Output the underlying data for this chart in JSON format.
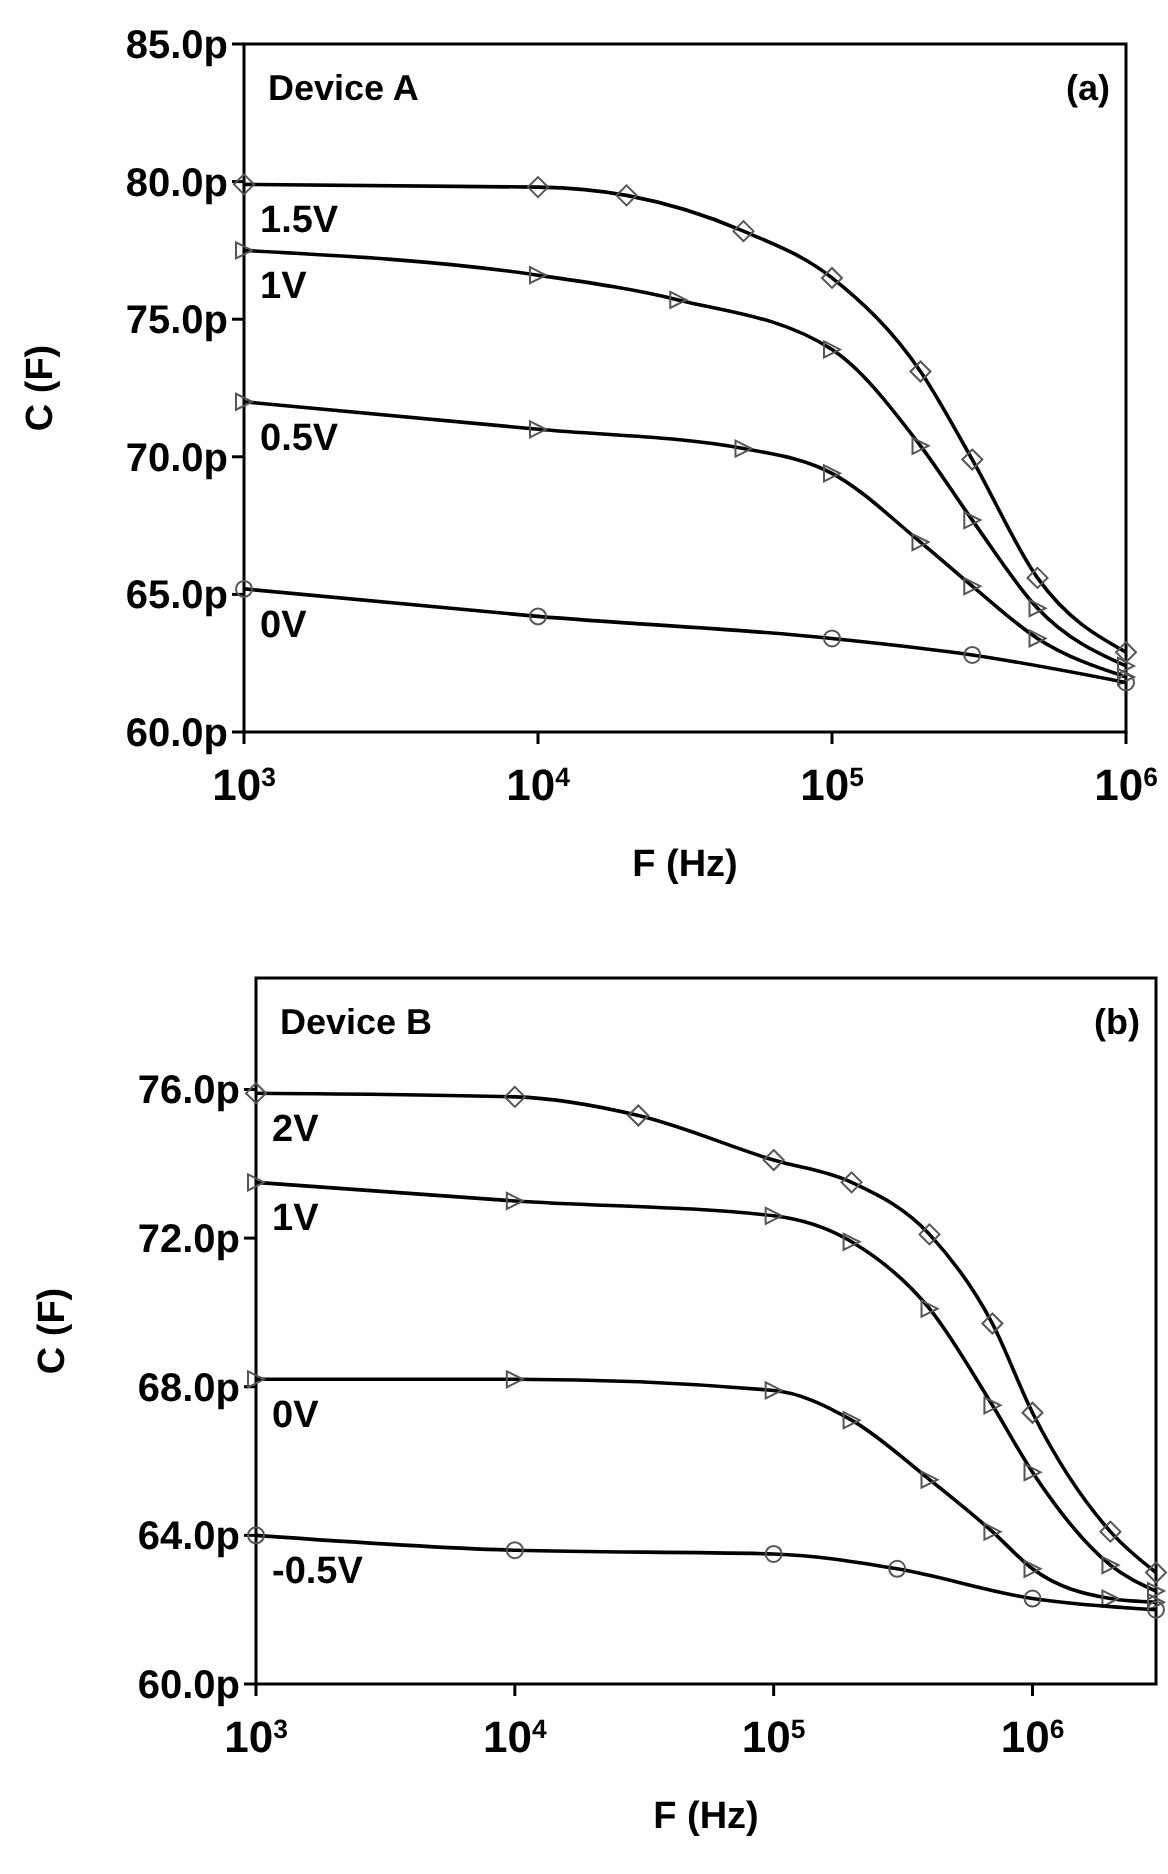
{
  "chart_data": [
    {
      "type": "line",
      "xlabel": "F (Hz)",
      "ylabel": "C (F)",
      "log": "x",
      "grid": false,
      "line_style": "solid",
      "annotations": [
        "Device A",
        "(a)"
      ],
      "xlim": [
        1000,
        1000000
      ],
      "xticks": [
        {
          "value": 1000,
          "label": "10$^{3}$"
        },
        {
          "value": 10000,
          "label": "10$^{4}$"
        },
        {
          "value": 100000,
          "label": "10$^{5}$"
        },
        {
          "value": 1000000,
          "label": "10$^{6}$"
        }
      ],
      "ylim": [
        60,
        85
      ],
      "yticks": [
        {
          "value": 60,
          "label": "60.0p"
        },
        {
          "value": 65,
          "label": "65.0p"
        },
        {
          "value": 70,
          "label": "70.0p"
        },
        {
          "value": 75,
          "label": "75.0p"
        },
        {
          "value": 80,
          "label": "80.0p"
        },
        {
          "value": 85,
          "label": "85.0p"
        }
      ],
      "series": [
        {
          "name": "1.5V",
          "color": "#000000",
          "marker": "diamond",
          "x": [
            1000,
            10000,
            20000,
            50000,
            100000,
            200000,
            300000,
            500000,
            1000000
          ],
          "values": [
            79.9,
            79.8,
            79.5,
            78.2,
            76.5,
            73.1,
            69.9,
            65.6,
            62.9
          ]
        },
        {
          "name": "1V",
          "color": "#000000",
          "marker": "triangle",
          "x": [
            1000,
            10000,
            30000,
            100000,
            200000,
            300000,
            500000,
            1000000
          ],
          "values": [
            77.5,
            76.6,
            75.7,
            73.9,
            70.4,
            67.7,
            64.5,
            62.4
          ]
        },
        {
          "name": "0.5V",
          "color": "#000000",
          "marker": "triangle",
          "x": [
            1000,
            10000,
            50000,
            100000,
            200000,
            300000,
            500000,
            1000000
          ],
          "values": [
            72.0,
            71.0,
            70.3,
            69.4,
            66.9,
            65.3,
            63.4,
            62.0
          ]
        },
        {
          "name": "0V",
          "color": "#000000",
          "marker": "circle",
          "x": [
            1000,
            10000,
            100000,
            300000,
            1000000
          ],
          "values": [
            65.2,
            64.2,
            63.4,
            62.8,
            61.8
          ]
        }
      ]
    },
    {
      "type": "line",
      "xlabel": "F (Hz)",
      "ylabel": "C (F)",
      "log": "x",
      "grid": false,
      "line_style": "solid",
      "annotations": [
        "Device B",
        "(b)"
      ],
      "xlim": [
        1000,
        3000000
      ],
      "xticks": [
        {
          "value": 1000,
          "label": "10$^{3}$"
        },
        {
          "value": 10000,
          "label": "10$^{4}$"
        },
        {
          "value": 100000,
          "label": "10$^{5}$"
        },
        {
          "value": 1000000,
          "label": "10$^{6}$"
        }
      ],
      "ylim": [
        60,
        79
      ],
      "yticks": [
        {
          "value": 60,
          "label": "60.0p"
        },
        {
          "value": 64,
          "label": "64.0p"
        },
        {
          "value": 68,
          "label": "68.0p"
        },
        {
          "value": 72,
          "label": "72.0p"
        },
        {
          "value": 76,
          "label": "76.0p"
        }
      ],
      "series": [
        {
          "name": "2V",
          "color": "#000000",
          "marker": "diamond",
          "x": [
            1000,
            10000,
            30000,
            100000,
            200000,
            400000,
            700000,
            1000000,
            2000000,
            3000000
          ],
          "values": [
            75.9,
            75.8,
            75.3,
            74.1,
            73.5,
            72.1,
            69.7,
            67.3,
            64.1,
            63.0
          ]
        },
        {
          "name": "1V",
          "color": "#000000",
          "marker": "triangle",
          "x": [
            1000,
            10000,
            100000,
            200000,
            400000,
            700000,
            1000000,
            2000000,
            3000000
          ],
          "values": [
            73.5,
            73.0,
            72.6,
            71.9,
            70.1,
            67.5,
            65.7,
            63.2,
            62.5
          ]
        },
        {
          "name": "0V",
          "color": "#000000",
          "marker": "triangle",
          "x": [
            1000,
            10000,
            100000,
            200000,
            400000,
            700000,
            1000000,
            2000000,
            3000000
          ],
          "values": [
            68.2,
            68.2,
            67.9,
            67.1,
            65.5,
            64.1,
            63.1,
            62.3,
            62.2
          ]
        },
        {
          "name": "-0.5V",
          "color": "#000000",
          "marker": "circle",
          "x": [
            1000,
            10000,
            100000,
            300000,
            1000000,
            3000000
          ],
          "values": [
            64.0,
            63.6,
            63.5,
            63.1,
            62.3,
            62.0
          ]
        }
      ]
    }
  ]
}
